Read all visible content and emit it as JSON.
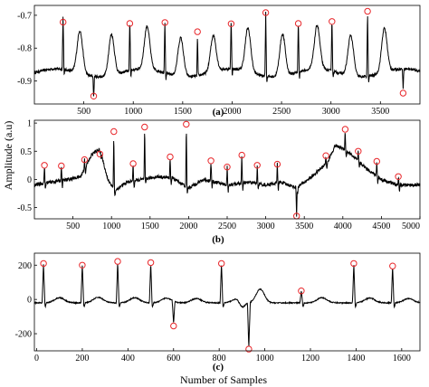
{
  "figure": {
    "ylabel": "Amplitude (a.u)",
    "xlabel": "Number of Samples"
  },
  "chart_data": [
    {
      "type": "line",
      "panel_label": "(a)",
      "xlim": [
        0,
        3900
      ],
      "ylim": [
        -0.97,
        -0.67
      ],
      "xticks": [
        500,
        1000,
        1500,
        2000,
        2500,
        3000,
        3500
      ],
      "yticks": [
        -0.7,
        -0.8,
        -0.9
      ],
      "ytick_labels": [
        "-0.7",
        "-0.8",
        "-0.9"
      ],
      "baseline": -0.875,
      "noise_amplitude": 0.004,
      "series": [
        {
          "r_peaks": [
            [
              290,
              -0.721
            ],
            [
              965,
              -0.725
            ],
            [
              1320,
              -0.722
            ],
            [
              1990,
              -0.726
            ],
            [
              2340,
              -0.692
            ],
            [
              2670,
              -0.725
            ],
            [
              3010,
              -0.719
            ],
            [
              3370,
              -0.688
            ]
          ],
          "inverted_peaks": [
            [
              600,
              -0.946
            ],
            [
              1650,
              -0.75
            ],
            [
              3730,
              -0.937
            ]
          ],
          "t_waves": [
            [
              460,
              -0.745
            ],
            [
              780,
              -0.75
            ],
            [
              1140,
              -0.745
            ],
            [
              1480,
              -0.758
            ],
            [
              1810,
              -0.765
            ],
            [
              2160,
              -0.742
            ],
            [
              2510,
              -0.748
            ],
            [
              2860,
              -0.742
            ],
            [
              3200,
              -0.752
            ],
            [
              3540,
              -0.742
            ]
          ]
        }
      ],
      "marked_points": [
        [
          290,
          -0.721
        ],
        [
          600,
          -0.946
        ],
        [
          965,
          -0.725
        ],
        [
          1320,
          -0.722
        ],
        [
          1650,
          -0.75
        ],
        [
          1990,
          -0.726
        ],
        [
          2340,
          -0.692
        ],
        [
          2670,
          -0.725
        ],
        [
          3010,
          -0.719
        ],
        [
          3370,
          -0.688
        ],
        [
          3730,
          -0.937
        ]
      ]
    },
    {
      "type": "line",
      "panel_label": "(b)",
      "xlim": [
        0,
        5000
      ],
      "ylim": [
        -0.7,
        1.05
      ],
      "xticks": [
        500,
        1000,
        1500,
        2000,
        2500,
        3000,
        3500,
        4000,
        4500,
        5000
      ],
      "yticks": [
        1,
        0.5,
        0,
        -0.5
      ],
      "ytick_labels": [
        "1",
        "0.5",
        "0",
        "-0.5"
      ],
      "baseline_points": [
        [
          0,
          -0.1
        ],
        [
          200,
          -0.05
        ],
        [
          450,
          0.0
        ],
        [
          600,
          0.05
        ],
        [
          750,
          0.45
        ],
        [
          850,
          0.55
        ],
        [
          950,
          0.0
        ],
        [
          1050,
          -0.2
        ],
        [
          1200,
          -0.05
        ],
        [
          1400,
          0.0
        ],
        [
          1600,
          0.05
        ],
        [
          1800,
          0.02
        ],
        [
          2000,
          -0.15
        ],
        [
          2200,
          0.0
        ],
        [
          2500,
          -0.1
        ],
        [
          2800,
          -0.05
        ],
        [
          3000,
          -0.1
        ],
        [
          3200,
          -0.05
        ],
        [
          3400,
          -0.15
        ],
        [
          3600,
          0.05
        ],
        [
          3800,
          0.3
        ],
        [
          3900,
          0.6
        ],
        [
          4000,
          0.55
        ],
        [
          4100,
          0.45
        ],
        [
          4300,
          0.2
        ],
        [
          4500,
          0.0
        ],
        [
          4700,
          -0.1
        ],
        [
          5000,
          -0.1
        ]
      ],
      "noise_amplitude": 0.03,
      "spikes": [
        [
          130,
          0.25
        ],
        [
          350,
          0.24
        ],
        [
          650,
          0.35
        ],
        [
          850,
          0.45
        ],
        [
          1030,
          0.85
        ],
        [
          1280,
          0.28
        ],
        [
          1430,
          0.93
        ],
        [
          1760,
          0.4
        ],
        [
          1970,
          0.98
        ],
        [
          2290,
          0.33
        ],
        [
          2500,
          0.22
        ],
        [
          2690,
          0.43
        ],
        [
          2890,
          0.25
        ],
        [
          3150,
          0.27
        ],
        [
          3400,
          -0.65
        ],
        [
          3780,
          0.42
        ],
        [
          4030,
          0.89
        ],
        [
          4200,
          0.5
        ],
        [
          4440,
          0.32
        ],
        [
          4720,
          0.05
        ]
      ],
      "marked_points": [
        [
          130,
          0.25
        ],
        [
          350,
          0.24
        ],
        [
          650,
          0.35
        ],
        [
          850,
          0.45
        ],
        [
          1030,
          0.85
        ],
        [
          1280,
          0.28
        ],
        [
          1430,
          0.93
        ],
        [
          1760,
          0.4
        ],
        [
          1970,
          0.98
        ],
        [
          2290,
          0.33
        ],
        [
          2500,
          0.22
        ],
        [
          2690,
          0.43
        ],
        [
          2890,
          0.25
        ],
        [
          3150,
          0.27
        ],
        [
          3400,
          -0.65
        ],
        [
          3780,
          0.42
        ],
        [
          4030,
          0.89
        ],
        [
          4200,
          0.5
        ],
        [
          4440,
          0.32
        ],
        [
          4720,
          0.05
        ]
      ]
    },
    {
      "type": "line",
      "panel_label": "(c)",
      "xlim": [
        -10,
        1680
      ],
      "ylim": [
        -300,
        270
      ],
      "xticks": [
        0,
        200,
        400,
        600,
        800,
        1000,
        1200,
        1400,
        1600
      ],
      "yticks": [
        200,
        0,
        -200
      ],
      "ytick_labels": [
        "200",
        "0",
        "-200"
      ],
      "baseline": -20,
      "noise_amplitude": 3,
      "spikes": [
        [
          30,
          210
        ],
        [
          200,
          200
        ],
        [
          355,
          222
        ],
        [
          500,
          215
        ],
        [
          600,
          -155
        ],
        [
          810,
          210
        ],
        [
          930,
          -290
        ],
        [
          1160,
          50
        ],
        [
          1390,
          210
        ],
        [
          1560,
          195
        ]
      ],
      "biphasic_wave": [
        [
          900,
          -60
        ],
        [
          935,
          -130
        ],
        [
          980,
          60
        ]
      ],
      "t_waves": [
        [
          100,
          10
        ],
        [
          270,
          12
        ],
        [
          430,
          10
        ],
        [
          570,
          8
        ],
        [
          700,
          5
        ],
        [
          880,
          5
        ],
        [
          1250,
          10
        ],
        [
          1460,
          8
        ],
        [
          1630,
          5
        ]
      ],
      "marked_points": [
        [
          30,
          210
        ],
        [
          200,
          200
        ],
        [
          355,
          222
        ],
        [
          500,
          215
        ],
        [
          600,
          -155
        ],
        [
          810,
          210
        ],
        [
          930,
          -290
        ],
        [
          1160,
          50
        ],
        [
          1390,
          210
        ],
        [
          1560,
          195
        ]
      ]
    }
  ],
  "colors": {
    "line": "#000000",
    "marker": "#e8262a",
    "axis": "#000000"
  }
}
